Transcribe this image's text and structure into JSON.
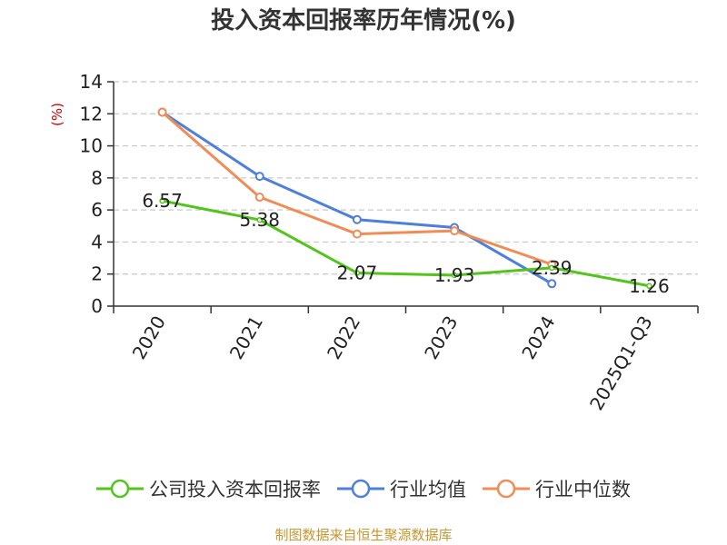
{
  "chart_data": {
    "type": "line",
    "title": "投入资本回报率历年情况(%)",
    "ylabel": "(%)",
    "xlabel": "",
    "categories": [
      "2020",
      "2021",
      "2022",
      "2023",
      "2024",
      "2025Q1-Q3"
    ],
    "ylim": [
      0,
      14
    ],
    "yticks": [
      0,
      2,
      4,
      6,
      8,
      10,
      12,
      14
    ],
    "grid": true,
    "legend_position": "bottom",
    "series": [
      {
        "name": "公司投入资本回报率",
        "color": "#52c41a",
        "values": [
          6.57,
          5.38,
          2.07,
          1.93,
          2.39,
          1.26
        ],
        "labels": [
          "6.57",
          "5.38",
          "2.07",
          "1.93",
          "2.39",
          "1.26"
        ]
      },
      {
        "name": "行业均值",
        "color": "#4e7fdb",
        "values": [
          12.1,
          8.1,
          5.4,
          4.9,
          1.4,
          null
        ]
      },
      {
        "name": "行业中位数",
        "color": "#f08c55",
        "values": [
          12.1,
          6.8,
          4.5,
          4.7,
          2.6,
          null
        ]
      }
    ]
  },
  "footer": {
    "source": "制图数据来自恒生聚源数据库"
  }
}
